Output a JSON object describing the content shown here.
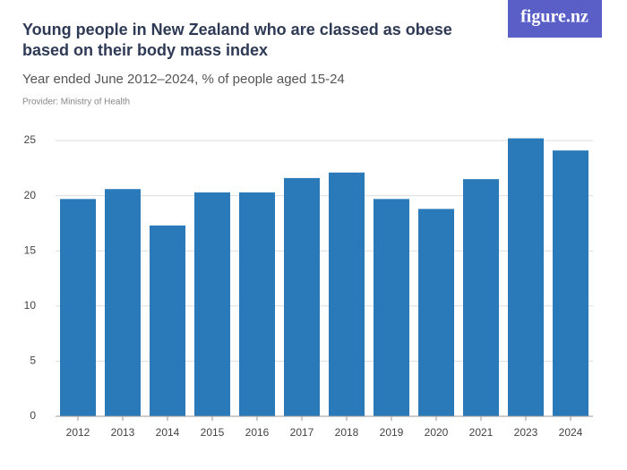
{
  "chart_data": {
    "type": "bar",
    "title": "Young people in New Zealand who are classed as obese based on their body mass index",
    "subtitle": "Year ended June 2012–2024, % of people aged 15-24",
    "provider": "Provider: Ministry of Health",
    "logo": "figure.nz",
    "categories": [
      "2012",
      "2013",
      "2014",
      "2015",
      "2016",
      "2017",
      "2018",
      "2019",
      "2020",
      "2021",
      "2023",
      "2024"
    ],
    "values": [
      19.7,
      20.6,
      17.3,
      20.3,
      20.3,
      21.6,
      22.1,
      19.7,
      18.8,
      21.5,
      25.2,
      24.1
    ],
    "color": "#2a7ab9",
    "ylim": [
      0,
      25
    ],
    "yticks": [
      0,
      5,
      10,
      15,
      20,
      25
    ],
    "grid": true
  }
}
